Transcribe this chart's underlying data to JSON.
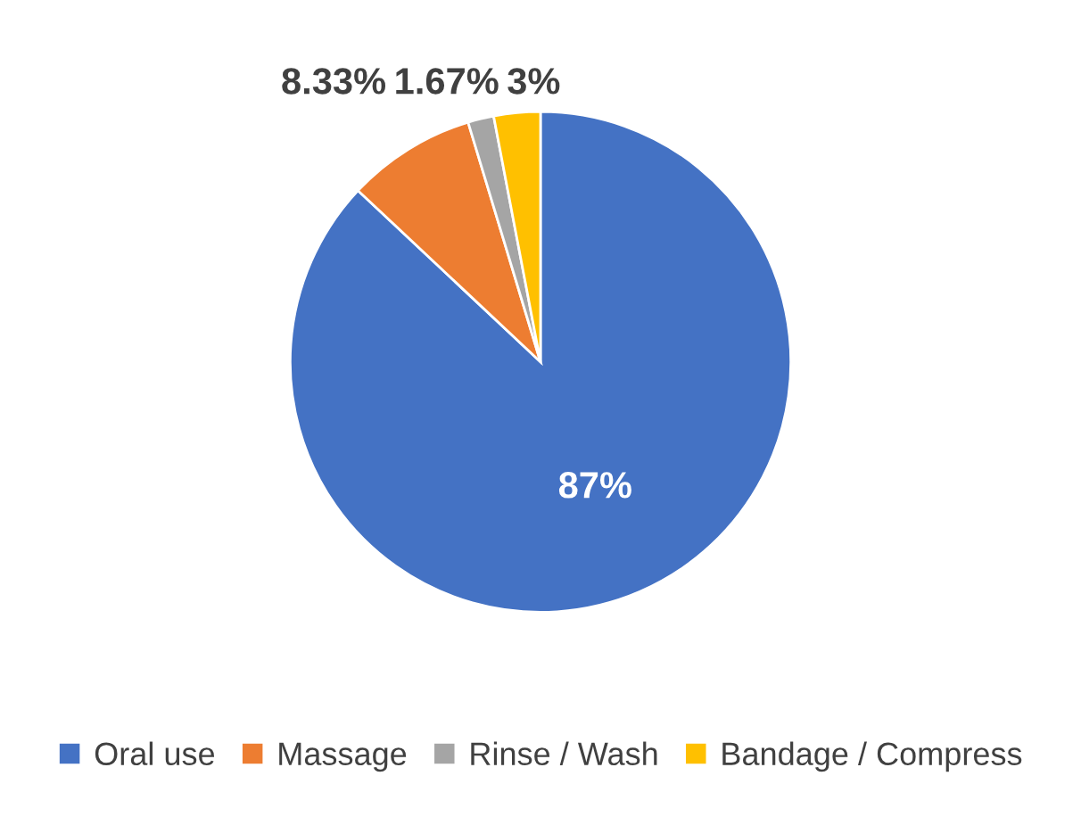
{
  "chart_data": {
    "type": "pie",
    "categories": [
      "Oral use",
      "Massage",
      "Rinse / Wash",
      "Bandage / Compress"
    ],
    "values": [
      87,
      8.33,
      1.67,
      3
    ],
    "colors": [
      "#4472c4",
      "#ed7d31",
      "#a5a5a5",
      "#ffc000"
    ],
    "value_labels": [
      "87%",
      "8.33%",
      "1.67%",
      "3%"
    ],
    "legend": "bottom"
  }
}
